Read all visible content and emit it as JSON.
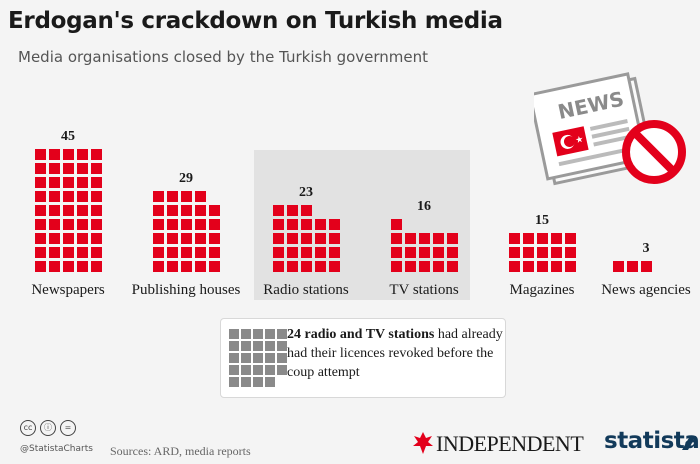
{
  "title": "Erdogan's crackdown on Turkish media",
  "subtitle": "Media organisations closed by the Turkish government",
  "chart_data": {
    "type": "bar",
    "categories": [
      "Newspapers",
      "Publishing houses",
      "Radio stations",
      "TV stations",
      "Magazines",
      "News agencies"
    ],
    "values": [
      45,
      29,
      23,
      16,
      15,
      3
    ],
    "unit": "one square = one media organisation"
  },
  "note": {
    "bold": "24 radio and TV stations",
    "rest": " had already had their licences revoked before the coup attempt",
    "count": 24
  },
  "illustration": {
    "newspaper_label": "NEWS"
  },
  "footer": {
    "handle": "@StatistaCharts",
    "sources": "Sources: ARD, media reports",
    "partner": "INDEPENDENT",
    "brand": "statista"
  },
  "colors": {
    "bar": "#e3001b",
    "panel": "#e2e2e2",
    "note_squares": "#8a8a8a"
  }
}
